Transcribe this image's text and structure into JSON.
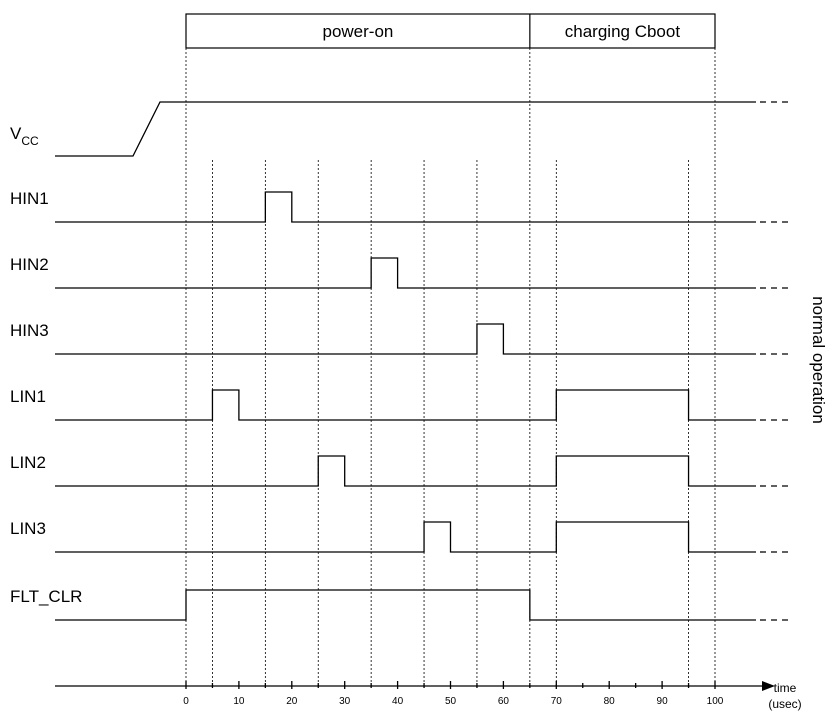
{
  "phases": [
    {
      "label": "power-on",
      "from": 0,
      "to": 65
    },
    {
      "label": "charging Cboot",
      "from": 65,
      "to": 100
    }
  ],
  "signals": [
    {
      "name": "V",
      "sub": "CC",
      "kind": "ramp",
      "name_key": "vcc"
    },
    {
      "name": "HIN1",
      "kind": "pulses",
      "pulses": [
        [
          15,
          20
        ]
      ]
    },
    {
      "name": "HIN2",
      "kind": "pulses",
      "pulses": [
        [
          35,
          40
        ]
      ]
    },
    {
      "name": "HIN3",
      "kind": "pulses",
      "pulses": [
        [
          55,
          60
        ]
      ]
    },
    {
      "name": "LIN1",
      "kind": "pulses",
      "pulses": [
        [
          5,
          10
        ],
        [
          70,
          95
        ]
      ]
    },
    {
      "name": "LIN2",
      "kind": "pulses",
      "pulses": [
        [
          25,
          30
        ],
        [
          70,
          95
        ]
      ]
    },
    {
      "name": "LIN3",
      "kind": "pulses",
      "pulses": [
        [
          45,
          50
        ],
        [
          70,
          95
        ]
      ]
    },
    {
      "name": "FLT_CLR",
      "kind": "pulses",
      "pulses": [
        [
          0,
          65
        ]
      ]
    }
  ],
  "axis": {
    "ticks": [
      0,
      10,
      20,
      30,
      40,
      50,
      60,
      70,
      80,
      90,
      100
    ],
    "minor_ticks": [
      5,
      15,
      25,
      35,
      45,
      55,
      65,
      75,
      85,
      95
    ],
    "title_line1": "time",
    "title_line2": "(usec)"
  },
  "guide_times": [
    0,
    5,
    15,
    25,
    35,
    45,
    55,
    65,
    70,
    95,
    100
  ],
  "side_label": "normal operation"
}
